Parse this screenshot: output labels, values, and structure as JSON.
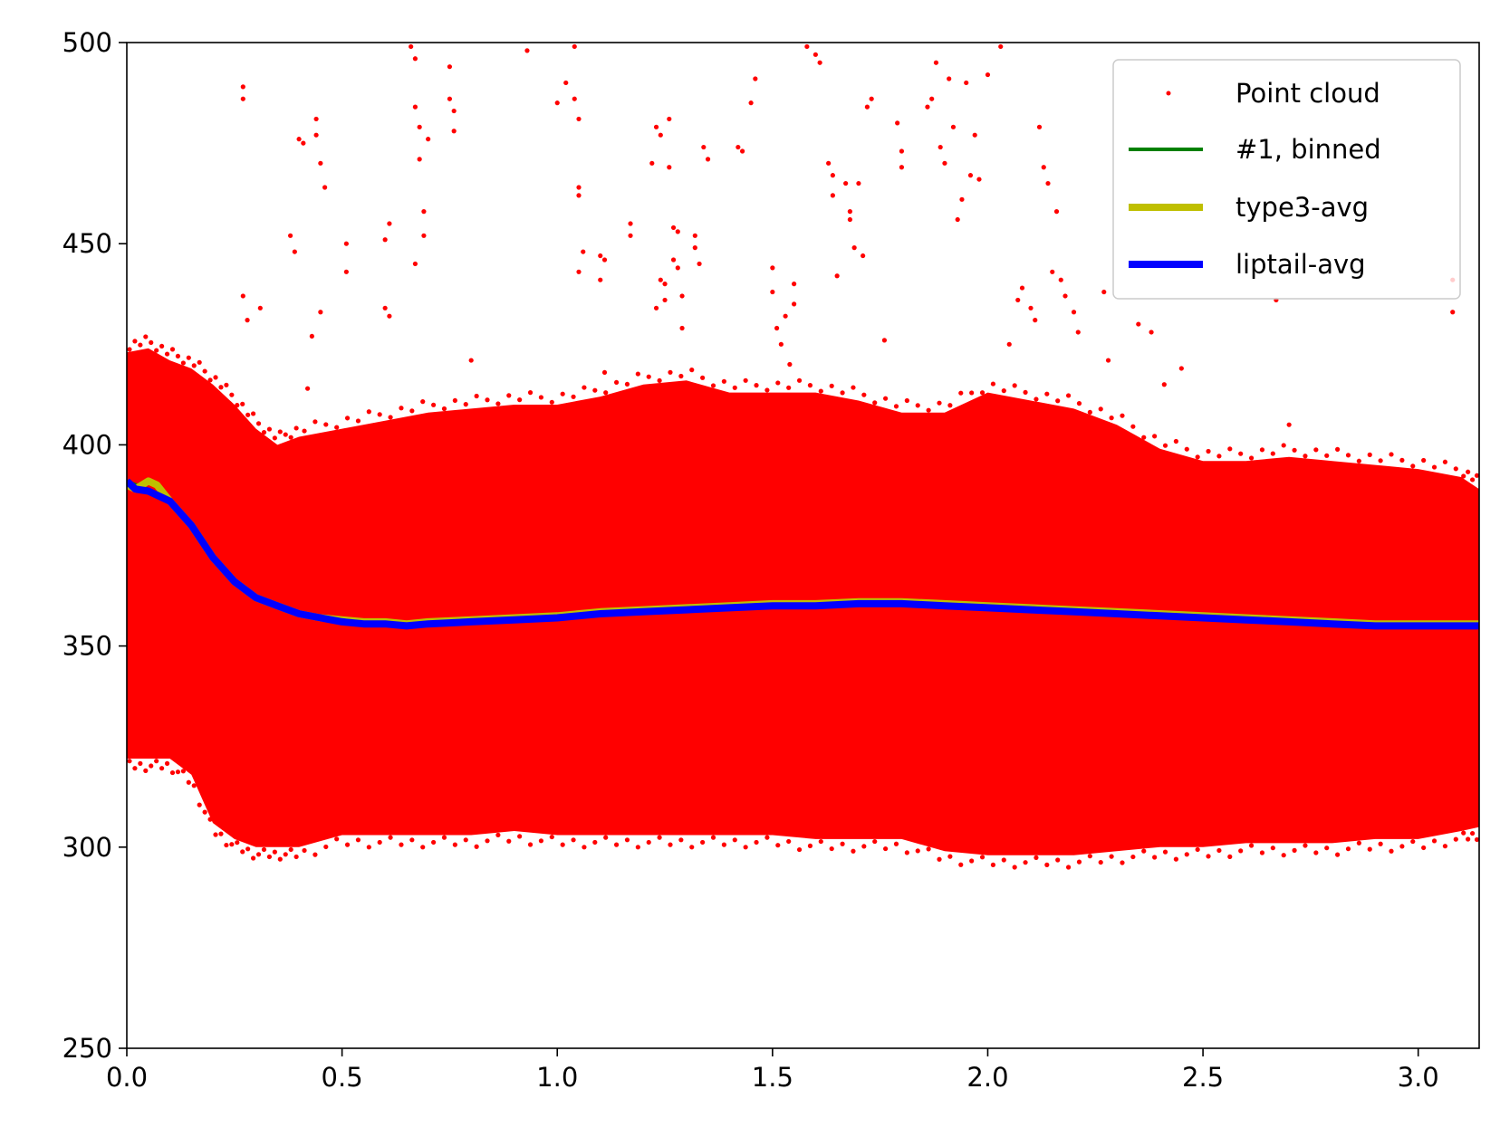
{
  "chart_data": {
    "type": "scatter",
    "title": "",
    "xlabel": "",
    "ylabel": "",
    "xlim": [
      0.0,
      3.1416
    ],
    "ylim": [
      250,
      500
    ],
    "xticks": [
      0.0,
      0.5,
      1.0,
      1.5,
      2.0,
      2.5,
      3.0
    ],
    "xtick_labels": [
      "0.0",
      "0.5",
      "1.0",
      "1.5",
      "2.0",
      "2.5",
      "3.0"
    ],
    "yticks": [
      250,
      300,
      350,
      400,
      450,
      500
    ],
    "ytick_labels": [
      "250",
      "300",
      "350",
      "400",
      "450",
      "500"
    ],
    "grid": false,
    "legend_position": "top-right",
    "colors": {
      "point_cloud": "#ff0000",
      "binned": "#008000",
      "type3": "#bfbf00",
      "liptail": "#0000ff"
    },
    "point_cloud": {
      "name": "Point cloud",
      "band_x": [
        0.0,
        0.05,
        0.1,
        0.15,
        0.2,
        0.25,
        0.3,
        0.35,
        0.4,
        0.5,
        0.6,
        0.7,
        0.8,
        0.9,
        1.0,
        1.1,
        1.2,
        1.3,
        1.4,
        1.5,
        1.6,
        1.7,
        1.8,
        1.9,
        2.0,
        2.1,
        2.2,
        2.3,
        2.4,
        2.5,
        2.6,
        2.7,
        2.8,
        2.9,
        3.0,
        3.1,
        3.1416
      ],
      "band_top": [
        423,
        424,
        421,
        419,
        415,
        410,
        404,
        400,
        402,
        404,
        406,
        408,
        409,
        410,
        410,
        412,
        415,
        416,
        413,
        413,
        413,
        411,
        408,
        408,
        413,
        411,
        409,
        405,
        399,
        396,
        396,
        397,
        396,
        395,
        394,
        392,
        389
      ],
      "band_bottom": [
        322,
        322,
        322,
        318,
        306,
        302,
        300,
        300,
        300,
        303,
        303,
        303,
        303,
        304,
        303,
        303,
        303,
        303,
        303,
        303,
        302,
        302,
        302,
        299,
        298,
        298,
        298,
        299,
        300,
        300,
        301,
        301,
        301,
        302,
        302,
        304,
        305
      ],
      "outliers": [
        [
          0.27,
          489
        ],
        [
          0.27,
          486
        ],
        [
          0.27,
          437
        ],
        [
          0.28,
          431
        ],
        [
          0.31,
          434
        ],
        [
          0.38,
          452
        ],
        [
          0.39,
          448
        ],
        [
          0.4,
          476
        ],
        [
          0.41,
          475
        ],
        [
          0.42,
          414
        ],
        [
          0.43,
          427
        ],
        [
          0.44,
          481
        ],
        [
          0.44,
          477
        ],
        [
          0.45,
          433
        ],
        [
          0.45,
          470
        ],
        [
          0.46,
          464
        ],
        [
          0.51,
          450
        ],
        [
          0.51,
          443
        ],
        [
          0.6,
          451
        ],
        [
          0.6,
          434
        ],
        [
          0.61,
          455
        ],
        [
          0.61,
          432
        ],
        [
          0.66,
          499
        ],
        [
          0.67,
          496
        ],
        [
          0.67,
          484
        ],
        [
          0.67,
          445
        ],
        [
          0.68,
          479
        ],
        [
          0.68,
          471
        ],
        [
          0.69,
          452
        ],
        [
          0.69,
          458
        ],
        [
          0.7,
          476
        ],
        [
          0.75,
          494
        ],
        [
          0.75,
          486
        ],
        [
          0.76,
          478
        ],
        [
          0.76,
          483
        ],
        [
          0.8,
          421
        ],
        [
          0.93,
          498
        ],
        [
          1.0,
          485
        ],
        [
          1.02,
          490
        ],
        [
          1.04,
          499
        ],
        [
          1.04,
          486
        ],
        [
          1.05,
          481
        ],
        [
          1.05,
          464
        ],
        [
          1.05,
          462
        ],
        [
          1.05,
          443
        ],
        [
          1.06,
          448
        ],
        [
          1.1,
          447
        ],
        [
          1.1,
          441
        ],
        [
          1.11,
          446
        ],
        [
          1.11,
          418
        ],
        [
          1.17,
          455
        ],
        [
          1.17,
          452
        ],
        [
          1.22,
          470
        ],
        [
          1.23,
          479
        ],
        [
          1.23,
          434
        ],
        [
          1.24,
          477
        ],
        [
          1.24,
          441
        ],
        [
          1.25,
          440
        ],
        [
          1.25,
          436
        ],
        [
          1.26,
          481
        ],
        [
          1.26,
          469
        ],
        [
          1.27,
          454
        ],
        [
          1.27,
          446
        ],
        [
          1.28,
          453
        ],
        [
          1.28,
          444
        ],
        [
          1.29,
          437
        ],
        [
          1.29,
          429
        ],
        [
          1.32,
          452
        ],
        [
          1.32,
          449
        ],
        [
          1.33,
          445
        ],
        [
          1.34,
          474
        ],
        [
          1.35,
          471
        ],
        [
          1.42,
          474
        ],
        [
          1.43,
          473
        ],
        [
          1.45,
          485
        ],
        [
          1.46,
          491
        ],
        [
          1.5,
          444
        ],
        [
          1.5,
          438
        ],
        [
          1.51,
          429
        ],
        [
          1.52,
          425
        ],
        [
          1.53,
          432
        ],
        [
          1.54,
          420
        ],
        [
          1.55,
          435
        ],
        [
          1.55,
          440
        ],
        [
          1.58,
          499
        ],
        [
          1.6,
          497
        ],
        [
          1.61,
          495
        ],
        [
          1.63,
          470
        ],
        [
          1.64,
          467
        ],
        [
          1.64,
          462
        ],
        [
          1.65,
          442
        ],
        [
          1.67,
          465
        ],
        [
          1.68,
          458
        ],
        [
          1.68,
          456
        ],
        [
          1.69,
          449
        ],
        [
          1.7,
          465
        ],
        [
          1.71,
          447
        ],
        [
          1.72,
          484
        ],
        [
          1.73,
          486
        ],
        [
          1.76,
          426
        ],
        [
          1.79,
          480
        ],
        [
          1.8,
          469
        ],
        [
          1.8,
          473
        ],
        [
          1.86,
          484
        ],
        [
          1.87,
          486
        ],
        [
          1.88,
          495
        ],
        [
          1.89,
          474
        ],
        [
          1.9,
          470
        ],
        [
          1.91,
          491
        ],
        [
          1.92,
          479
        ],
        [
          1.93,
          456
        ],
        [
          1.94,
          461
        ],
        [
          1.95,
          490
        ],
        [
          1.96,
          467
        ],
        [
          1.97,
          477
        ],
        [
          1.98,
          466
        ],
        [
          2.0,
          492
        ],
        [
          2.03,
          499
        ],
        [
          2.05,
          425
        ],
        [
          2.07,
          436
        ],
        [
          2.08,
          439
        ],
        [
          2.1,
          434
        ],
        [
          2.11,
          431
        ],
        [
          2.12,
          479
        ],
        [
          2.13,
          469
        ],
        [
          2.14,
          465
        ],
        [
          2.15,
          443
        ],
        [
          2.16,
          458
        ],
        [
          2.17,
          441
        ],
        [
          2.18,
          437
        ],
        [
          2.2,
          433
        ],
        [
          2.21,
          428
        ],
        [
          2.27,
          438
        ],
        [
          2.28,
          421
        ],
        [
          2.35,
          430
        ],
        [
          2.38,
          428
        ],
        [
          2.41,
          415
        ],
        [
          2.45,
          419
        ],
        [
          2.67,
          436
        ],
        [
          2.7,
          405
        ],
        [
          3.08,
          441
        ],
        [
          3.08,
          433
        ]
      ]
    },
    "series": [
      {
        "name": "#1, binned",
        "color": "#008000",
        "x": [
          0.0,
          0.05,
          0.1,
          0.15,
          0.2,
          0.25,
          0.3,
          0.35,
          0.4,
          0.45,
          0.5,
          0.55,
          0.6,
          0.65,
          0.7,
          0.8,
          0.9,
          1.0,
          1.1,
          1.2,
          1.3,
          1.4,
          1.5,
          1.6,
          1.7,
          1.8,
          1.9,
          2.0,
          2.1,
          2.2,
          2.3,
          2.4,
          2.5,
          2.6,
          2.7,
          2.8,
          2.9,
          3.0,
          3.1,
          3.1416
        ],
        "y": [
          391,
          389,
          386,
          380,
          372,
          366,
          362,
          360,
          358,
          357,
          356.5,
          356,
          356,
          355.5,
          356,
          356.5,
          357,
          357.5,
          358.5,
          359,
          359.5,
          360,
          360.5,
          360.5,
          361,
          361,
          360.5,
          360,
          359.5,
          359,
          358.5,
          358,
          357.5,
          357,
          356.5,
          356,
          355.5,
          355.5,
          355.5,
          355.5
        ]
      },
      {
        "name": "type3-avg",
        "color": "#bfbf00",
        "x": [
          0.0,
          0.02,
          0.05,
          0.07,
          0.1,
          0.15,
          0.2,
          0.25,
          0.3,
          0.35,
          0.4,
          0.45,
          0.5,
          0.55,
          0.6,
          0.65,
          0.7,
          0.8,
          0.9,
          1.0,
          1.1,
          1.2,
          1.3,
          1.4,
          1.5,
          1.6,
          1.7,
          1.8,
          1.9,
          2.0,
          2.1,
          2.2,
          2.3,
          2.4,
          2.5,
          2.6,
          2.7,
          2.8,
          2.9,
          3.0,
          3.1,
          3.1416
        ],
        "y": [
          390,
          389,
          391,
          390,
          386,
          380,
          372,
          366,
          362,
          360,
          358,
          357,
          356.5,
          356,
          356,
          355.5,
          356,
          356.5,
          357,
          357.5,
          358.5,
          359,
          359.5,
          360,
          360.5,
          360.5,
          361,
          361,
          360.5,
          360,
          359.5,
          359,
          358.5,
          358,
          357.5,
          357,
          356.5,
          356,
          355.5,
          355.5,
          355.5,
          355.5
        ]
      },
      {
        "name": "liptail-avg",
        "color": "#0000ff",
        "x": [
          0.0,
          0.02,
          0.05,
          0.1,
          0.15,
          0.2,
          0.25,
          0.3,
          0.35,
          0.4,
          0.45,
          0.5,
          0.55,
          0.6,
          0.65,
          0.7,
          0.8,
          0.9,
          1.0,
          1.1,
          1.2,
          1.3,
          1.4,
          1.5,
          1.6,
          1.7,
          1.8,
          1.9,
          2.0,
          2.1,
          2.2,
          2.3,
          2.4,
          2.5,
          2.6,
          2.7,
          2.8,
          2.9,
          3.0,
          3.1,
          3.1416
        ],
        "y": [
          391,
          389,
          388.5,
          386,
          380,
          372,
          366,
          362,
          360,
          358,
          357,
          356,
          355.5,
          355.5,
          355,
          355.5,
          356,
          356.5,
          357,
          358,
          358.5,
          359,
          359.5,
          360,
          360,
          360.5,
          360.5,
          360,
          359.5,
          359,
          358.5,
          358,
          357.5,
          357,
          356.5,
          356,
          355.5,
          355,
          355,
          355,
          355
        ]
      }
    ]
  }
}
